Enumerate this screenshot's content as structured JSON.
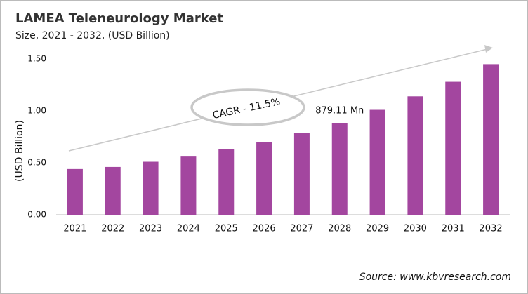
{
  "chart_data": {
    "type": "bar",
    "title": "LAMEA Teleneurology Market",
    "subtitle": "Size, 2021 - 2032, (USD Billion)",
    "y_label": "(USD Billion)",
    "annotation": "CAGR - 11.5%",
    "source": "Source: www.kbvresearch.com",
    "categories": [
      "2021",
      "2022",
      "2023",
      "2024",
      "2025",
      "2026",
      "2027",
      "2028",
      "2029",
      "2030",
      "2031",
      "2032"
    ],
    "values": [
      0.44,
      0.46,
      0.51,
      0.56,
      0.63,
      0.7,
      0.79,
      0.87911,
      1.01,
      1.14,
      1.28,
      1.45
    ],
    "value_labels": [
      null,
      null,
      null,
      null,
      null,
      null,
      null,
      "879.11 Mn",
      null,
      null,
      null,
      null
    ],
    "color": "#a3469f",
    "ylim": [
      0,
      1.5
    ],
    "yticks": [
      {
        "value": 0,
        "label": "0.00"
      },
      {
        "value": 0.5,
        "label": "0.50"
      },
      {
        "value": 1,
        "label": "1.00"
      },
      {
        "value": 1.5,
        "label": "1.50"
      }
    ],
    "grid": false
  }
}
